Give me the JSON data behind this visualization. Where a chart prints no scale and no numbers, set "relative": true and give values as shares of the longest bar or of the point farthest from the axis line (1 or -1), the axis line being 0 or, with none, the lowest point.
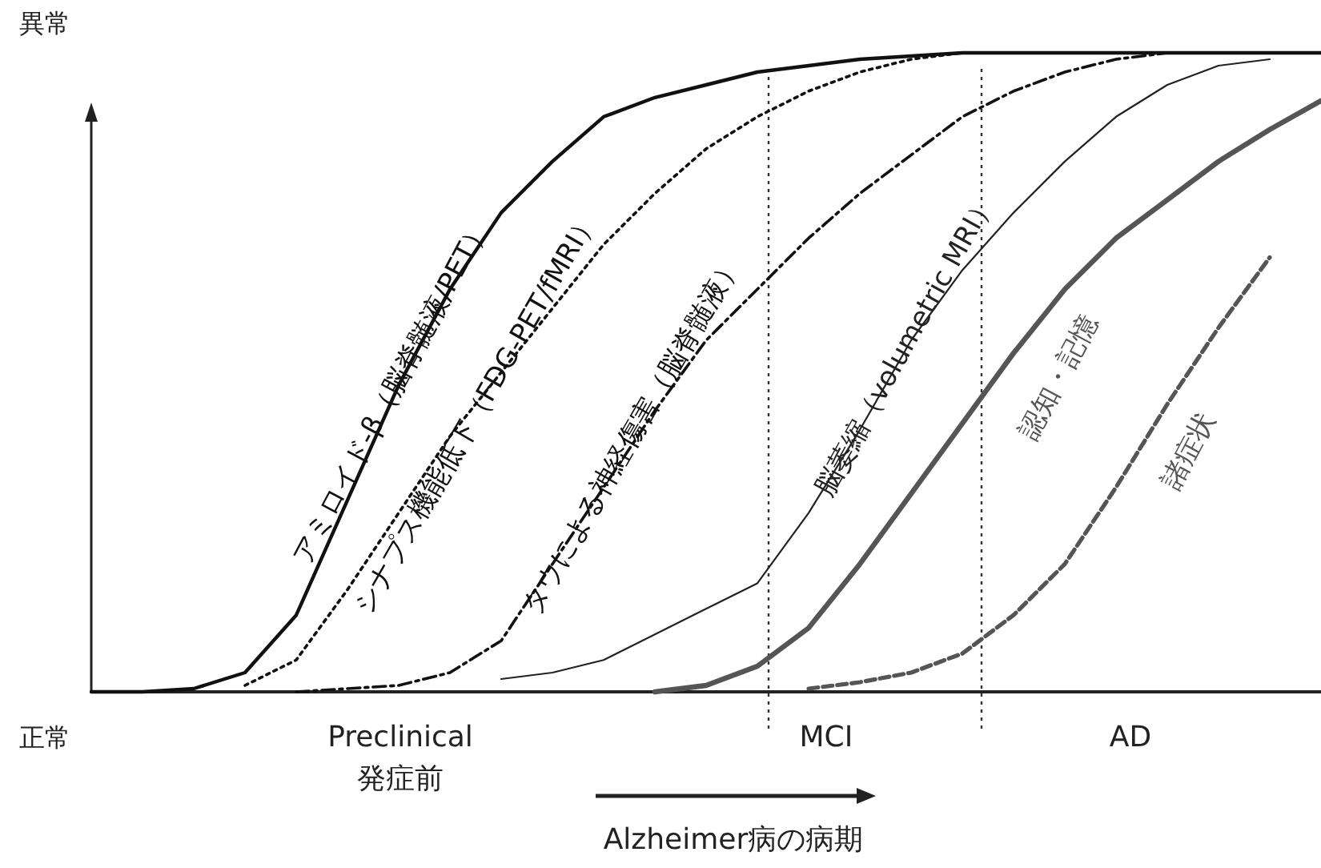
{
  "chart_data": {
    "type": "line",
    "relative": true,
    "xlabel": "Alzheimer病の病期",
    "categories": [
      null,
      null,
      null,
      null,
      null,
      null,
      null,
      null,
      null,
      null,
      null,
      null,
      null,
      null,
      null,
      null,
      null,
      null,
      null,
      null,
      null,
      null,
      null,
      null,
      null
    ],
    "series": [
      {
        "name": "アミロイド-β（脳脊髄液/PET）",
        "color": "#111111",
        "line_style": "solid",
        "values": [
          0,
          0,
          0.005,
          0.03,
          0.12,
          0.3,
          0.48,
          0.63,
          0.75,
          0.83,
          0.9,
          0.93,
          0.95,
          0.97,
          0.98,
          0.99,
          0.995,
          1,
          1,
          1,
          1,
          1,
          1,
          1,
          1
        ]
      },
      {
        "name": "シナプス機能低下（FDG-PET/fMRI）",
        "color": "#111111",
        "line_style": "dotted",
        "values": [
          null,
          null,
          null,
          0.01,
          0.05,
          0.16,
          0.28,
          0.4,
          0.5,
          0.6,
          0.7,
          0.78,
          0.85,
          0.9,
          0.94,
          0.97,
          0.99,
          1,
          1,
          1,
          1,
          1,
          1,
          1,
          1
        ]
      },
      {
        "name": "タウによる神経傷害（脳脊髄液）",
        "color": "#111111",
        "line_style": "dashdot",
        "values": [
          null,
          null,
          null,
          null,
          0,
          0.005,
          0.01,
          0.03,
          0.08,
          0.2,
          0.32,
          0.44,
          0.55,
          0.63,
          0.71,
          0.78,
          0.84,
          0.9,
          0.94,
          0.97,
          0.99,
          1,
          1,
          1,
          1
        ]
      },
      {
        "name": "脳萎縮（volumetric MRI）",
        "color": "#222222",
        "line_style": "solid",
        "values": [
          null,
          null,
          null,
          null,
          null,
          null,
          null,
          null,
          0.02,
          0.03,
          0.05,
          0.09,
          0.13,
          0.17,
          0.28,
          0.41,
          0.55,
          0.66,
          0.75,
          0.83,
          0.9,
          0.95,
          0.98,
          0.99,
          null
        ]
      },
      {
        "name": "認知・記憶",
        "color": "#555555",
        "line_style": "solid",
        "values": [
          null,
          null,
          null,
          null,
          null,
          null,
          null,
          null,
          null,
          null,
          null,
          0,
          0.01,
          0.04,
          0.1,
          0.2,
          0.31,
          0.42,
          0.53,
          0.63,
          0.71,
          0.77,
          0.83,
          0.88,
          0.925
        ]
      },
      {
        "name": "諸症状",
        "color": "#555555",
        "line_style": "dashed",
        "values": [
          null,
          null,
          null,
          null,
          null,
          null,
          null,
          null,
          null,
          null,
          null,
          null,
          null,
          null,
          0.005,
          0.015,
          0.03,
          0.06,
          0.12,
          0.2,
          0.32,
          0.45,
          0.57,
          0.68,
          null
        ]
      }
    ],
    "annotations": [
      "異常",
      "正常",
      "Preclinical\n発症前",
      "MCI",
      "AD"
    ]
  }
}
